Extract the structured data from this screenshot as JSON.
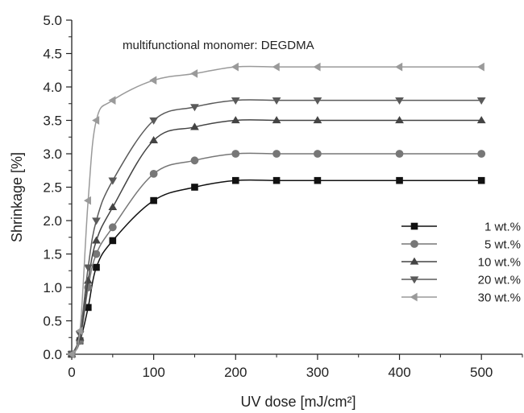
{
  "chart_data": {
    "type": "line",
    "title": "",
    "annotation": "multifunctional monomer: DEGDMA",
    "xlabel": "UV dose [mJ/cm²]",
    "ylabel": "Shrinkage [%]",
    "xlim": [
      0,
      550
    ],
    "ylim": [
      0,
      5.0
    ],
    "xticks": [
      0,
      100,
      200,
      300,
      400,
      500
    ],
    "yticks": [
      0.0,
      0.5,
      1.0,
      1.5,
      2.0,
      2.5,
      3.0,
      3.5,
      4.0,
      4.5,
      5.0
    ],
    "xtick_labels": [
      "0",
      "100",
      "200",
      "300",
      "400",
      "500"
    ],
    "ytick_labels": [
      "0.0",
      "0.5",
      "1.0",
      "1.5",
      "2.0",
      "2.5",
      "3.0",
      "3.5",
      "4.0",
      "4.5",
      "5.0"
    ],
    "grid": false,
    "legend_position": "right",
    "x": [
      0,
      10,
      20,
      30,
      50,
      100,
      150,
      200,
      250,
      300,
      400,
      500
    ],
    "series": [
      {
        "name": "1 wt.%",
        "marker": "square",
        "color": "#111111",
        "values": [
          0,
          0.2,
          0.7,
          1.3,
          1.7,
          2.3,
          2.5,
          2.6,
          2.6,
          2.6,
          2.6,
          2.6
        ]
      },
      {
        "name": "5 wt.%",
        "marker": "circle",
        "color": "#777777",
        "values": [
          0,
          0.2,
          1.0,
          1.5,
          1.9,
          2.7,
          2.9,
          3.0,
          3.0,
          3.0,
          3.0,
          3.0
        ]
      },
      {
        "name": "10 wt.%",
        "marker": "triangle-up",
        "color": "#444444",
        "values": [
          0,
          0.25,
          1.1,
          1.7,
          2.2,
          3.2,
          3.4,
          3.5,
          3.5,
          3.5,
          3.5,
          3.5
        ]
      },
      {
        "name": "20 wt.%",
        "marker": "triangle-down",
        "color": "#5a5a5a",
        "values": [
          0,
          0.3,
          1.3,
          2.0,
          2.6,
          3.5,
          3.7,
          3.8,
          3.8,
          3.8,
          3.8,
          3.8
        ]
      },
      {
        "name": "30 wt.%",
        "marker": "triangle-left",
        "color": "#9a9a9a",
        "values": [
          0,
          0.35,
          2.3,
          3.5,
          3.8,
          4.1,
          4.2,
          4.3,
          4.3,
          4.3,
          4.3,
          4.3
        ]
      }
    ]
  }
}
